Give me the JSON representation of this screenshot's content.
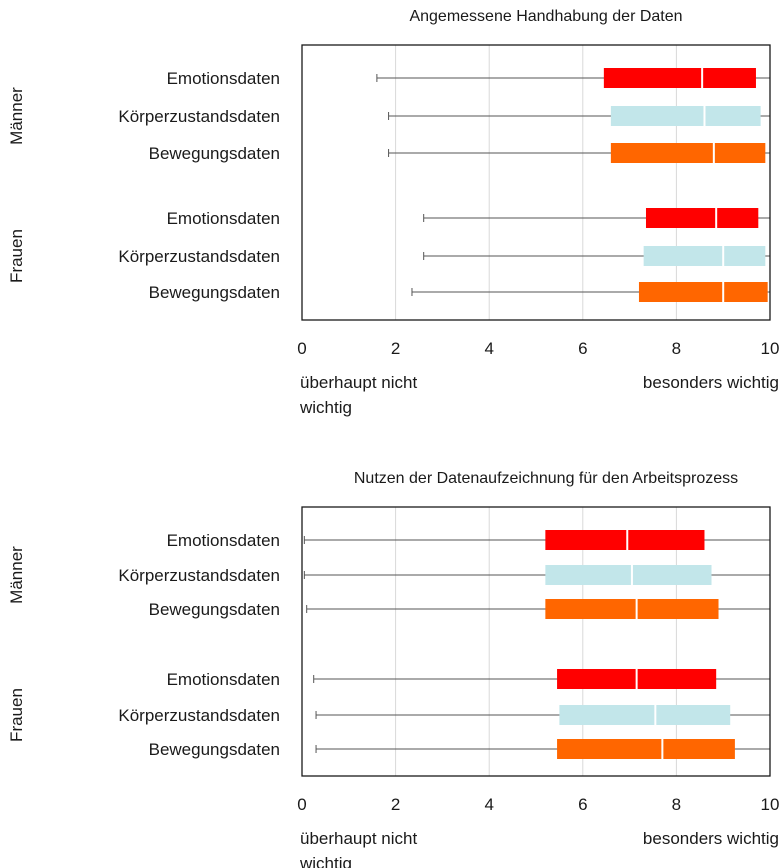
{
  "chart_data": [
    {
      "type": "boxplot",
      "title": "Angemessene Handhabung der Daten",
      "xlim": [
        0,
        10
      ],
      "xticks": [
        0,
        2,
        4,
        6,
        8,
        10
      ],
      "x_low_label": "überhaupt nicht wichtig",
      "x_high_label": "besonders wichtig",
      "grid": true,
      "groups": [
        {
          "name": "Männer",
          "series": [
            {
              "name": "Emotionsdaten",
              "color": "#ff0000",
              "whisker_low": 1.6,
              "q1": 6.45,
              "median": 8.55,
              "q3": 9.7,
              "whisker_high": 10
            },
            {
              "name": "Körperzustandsdaten",
              "color": "#c2e6ea",
              "whisker_low": 1.85,
              "q1": 6.6,
              "median": 8.6,
              "q3": 9.8,
              "whisker_high": 10
            },
            {
              "name": "Bewegungsdaten",
              "color": "#ff6600",
              "whisker_low": 1.85,
              "q1": 6.6,
              "median": 8.8,
              "q3": 9.9,
              "whisker_high": 10
            }
          ]
        },
        {
          "name": "Frauen",
          "series": [
            {
              "name": "Emotionsdaten",
              "color": "#ff0000",
              "whisker_low": 2.6,
              "q1": 7.35,
              "median": 8.85,
              "q3": 9.75,
              "whisker_high": 10
            },
            {
              "name": "Körperzustandsdaten",
              "color": "#c2e6ea",
              "whisker_low": 2.6,
              "q1": 7.3,
              "median": 9.0,
              "q3": 9.9,
              "whisker_high": 10
            },
            {
              "name": "Bewegungsdaten",
              "color": "#ff6600",
              "whisker_low": 2.35,
              "q1": 7.2,
              "median": 9.0,
              "q3": 9.95,
              "whisker_high": 10
            }
          ]
        }
      ]
    },
    {
      "type": "boxplot",
      "title": "Nutzen der Datenaufzeichnung für den Arbeitsprozess",
      "xlim": [
        0,
        10
      ],
      "xticks": [
        0,
        2,
        4,
        6,
        8,
        10
      ],
      "x_low_label": "überhaupt nicht wichtig",
      "x_high_label": "besonders wichtig",
      "grid": true,
      "groups": [
        {
          "name": "Männer",
          "series": [
            {
              "name": "Emotionsdaten",
              "color": "#ff0000",
              "whisker_low": 0.05,
              "q1": 5.2,
              "median": 6.95,
              "q3": 8.6,
              "whisker_high": 10
            },
            {
              "name": "Körperzustandsdaten",
              "color": "#c2e6ea",
              "whisker_low": 0.05,
              "q1": 5.2,
              "median": 7.05,
              "q3": 8.75,
              "whisker_high": 10
            },
            {
              "name": "Bewegungsdaten",
              "color": "#ff6600",
              "whisker_low": 0.1,
              "q1": 5.2,
              "median": 7.15,
              "q3": 8.9,
              "whisker_high": 10
            }
          ]
        },
        {
          "name": "Frauen",
          "series": [
            {
              "name": "Emotionsdaten",
              "color": "#ff0000",
              "whisker_low": 0.25,
              "q1": 5.45,
              "median": 7.15,
              "q3": 8.85,
              "whisker_high": 10
            },
            {
              "name": "Körperzustandsdaten",
              "color": "#c2e6ea",
              "whisker_low": 0.3,
              "q1": 5.5,
              "median": 7.55,
              "q3": 9.15,
              "whisker_high": 10
            },
            {
              "name": "Bewegungsdaten",
              "color": "#ff6600",
              "whisker_low": 0.3,
              "q1": 5.45,
              "median": 7.7,
              "q3": 9.25,
              "whisker_high": 10
            }
          ]
        }
      ]
    }
  ]
}
